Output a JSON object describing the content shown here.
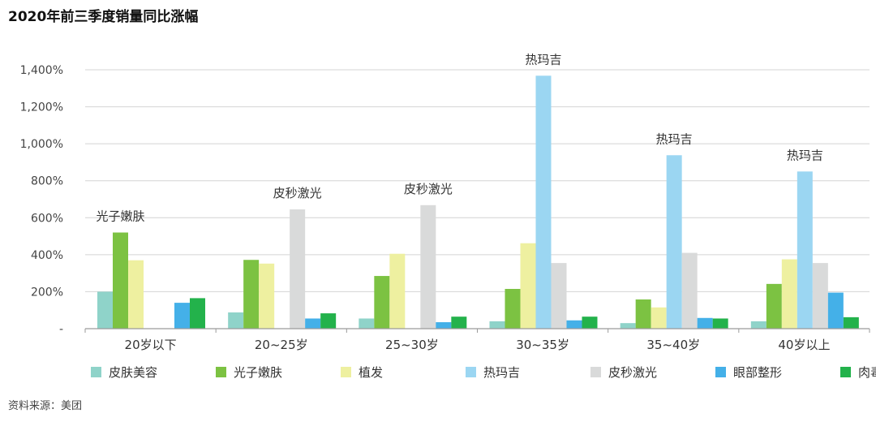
{
  "title": "2020年前三季度销量同比涨幅",
  "source": "资料来源：美团",
  "chart_data": {
    "type": "bar",
    "categories": [
      "20岁以下",
      "20~25岁",
      "25~30岁",
      "30~35岁",
      "35~40岁",
      "40岁以上"
    ],
    "ylim": [
      0,
      1400
    ],
    "yticks": [
      0,
      200,
      400,
      600,
      800,
      1000,
      1200,
      1400
    ],
    "ytick_labels": [
      "-",
      "200%",
      "400%",
      "600%",
      "800%",
      "1,000%",
      "1,200%",
      "1,400%"
    ],
    "grid": "horizontal",
    "legend_position": "bottom",
    "series": [
      {
        "name": "皮肤美容",
        "color": "#8fd3c9",
        "values": [
          200,
          88,
          55,
          40,
          30,
          40
        ]
      },
      {
        "name": "光子嫩肤",
        "color": "#7cc242",
        "values": [
          520,
          372,
          285,
          215,
          158,
          242
        ]
      },
      {
        "name": "植发",
        "color": "#eef0a0",
        "values": [
          370,
          352,
          405,
          462,
          115,
          375
        ]
      },
      {
        "name": "热玛吉",
        "color": "#9bd6f2",
        "values": [
          null,
          null,
          null,
          1368,
          938,
          850
        ]
      },
      {
        "name": "皮秒激光",
        "color": "#d9dada",
        "values": [
          null,
          645,
          668,
          355,
          410,
          355
        ]
      },
      {
        "name": "眼部整形",
        "color": "#44b0e8",
        "values": [
          140,
          55,
          35,
          45,
          58,
          195
        ]
      },
      {
        "name": "肉毒素",
        "color": "#23b24b",
        "values": [
          165,
          83,
          65,
          65,
          55,
          62
        ]
      }
    ],
    "annotations": [
      {
        "category": "20岁以下",
        "series": "光子嫩肤",
        "text": "光子嫩肤"
      },
      {
        "category": "20~25岁",
        "series": "皮秒激光",
        "text": "皮秒激光"
      },
      {
        "category": "25~30岁",
        "series": "皮秒激光",
        "text": "皮秒激光"
      },
      {
        "category": "30~35岁",
        "series": "热玛吉",
        "text": "热玛吉"
      },
      {
        "category": "35~40岁",
        "series": "热玛吉",
        "text": "热玛吉"
      },
      {
        "category": "40岁以上",
        "series": "热玛吉",
        "text": "热玛吉"
      }
    ]
  }
}
